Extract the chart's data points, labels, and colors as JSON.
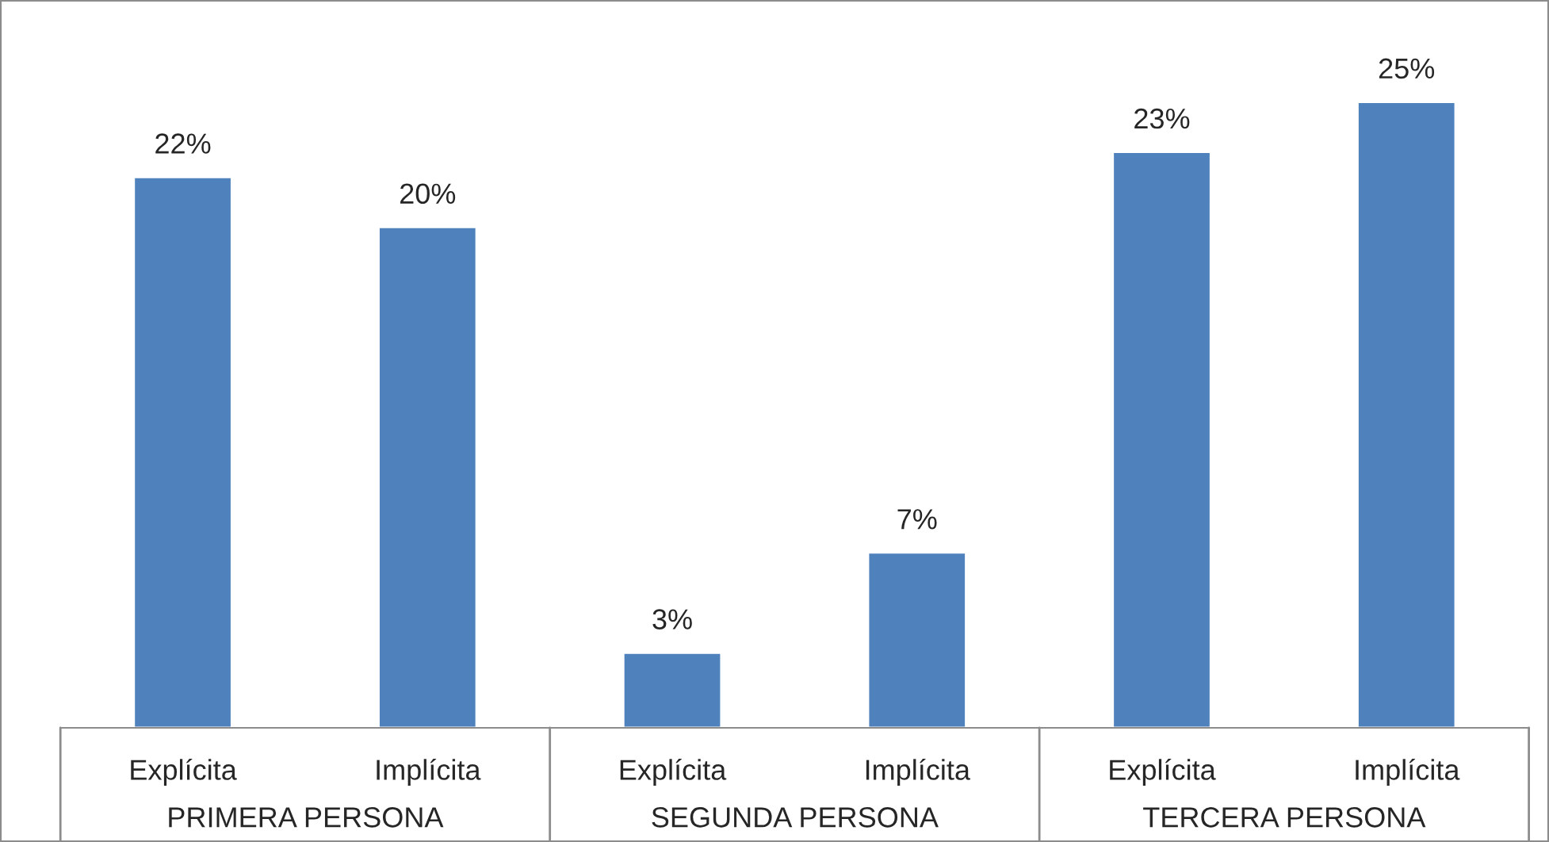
{
  "chart_data": {
    "type": "bar",
    "categories": [
      "Explícita",
      "Implícita",
      "Explícita",
      "Implícita",
      "Explícita",
      "Implícita"
    ],
    "values": [
      22,
      20,
      3,
      7,
      23,
      25
    ],
    "value_labels": [
      "22%",
      "20%",
      "3%",
      "7%",
      "23%",
      "25%"
    ],
    "color": "#4f81bd",
    "tick_labels": "x",
    "annotations": [
      "PRIMERA PERSONA",
      "SEGUNDA PERSONA",
      "TERCERA PERSONA"
    ]
  }
}
